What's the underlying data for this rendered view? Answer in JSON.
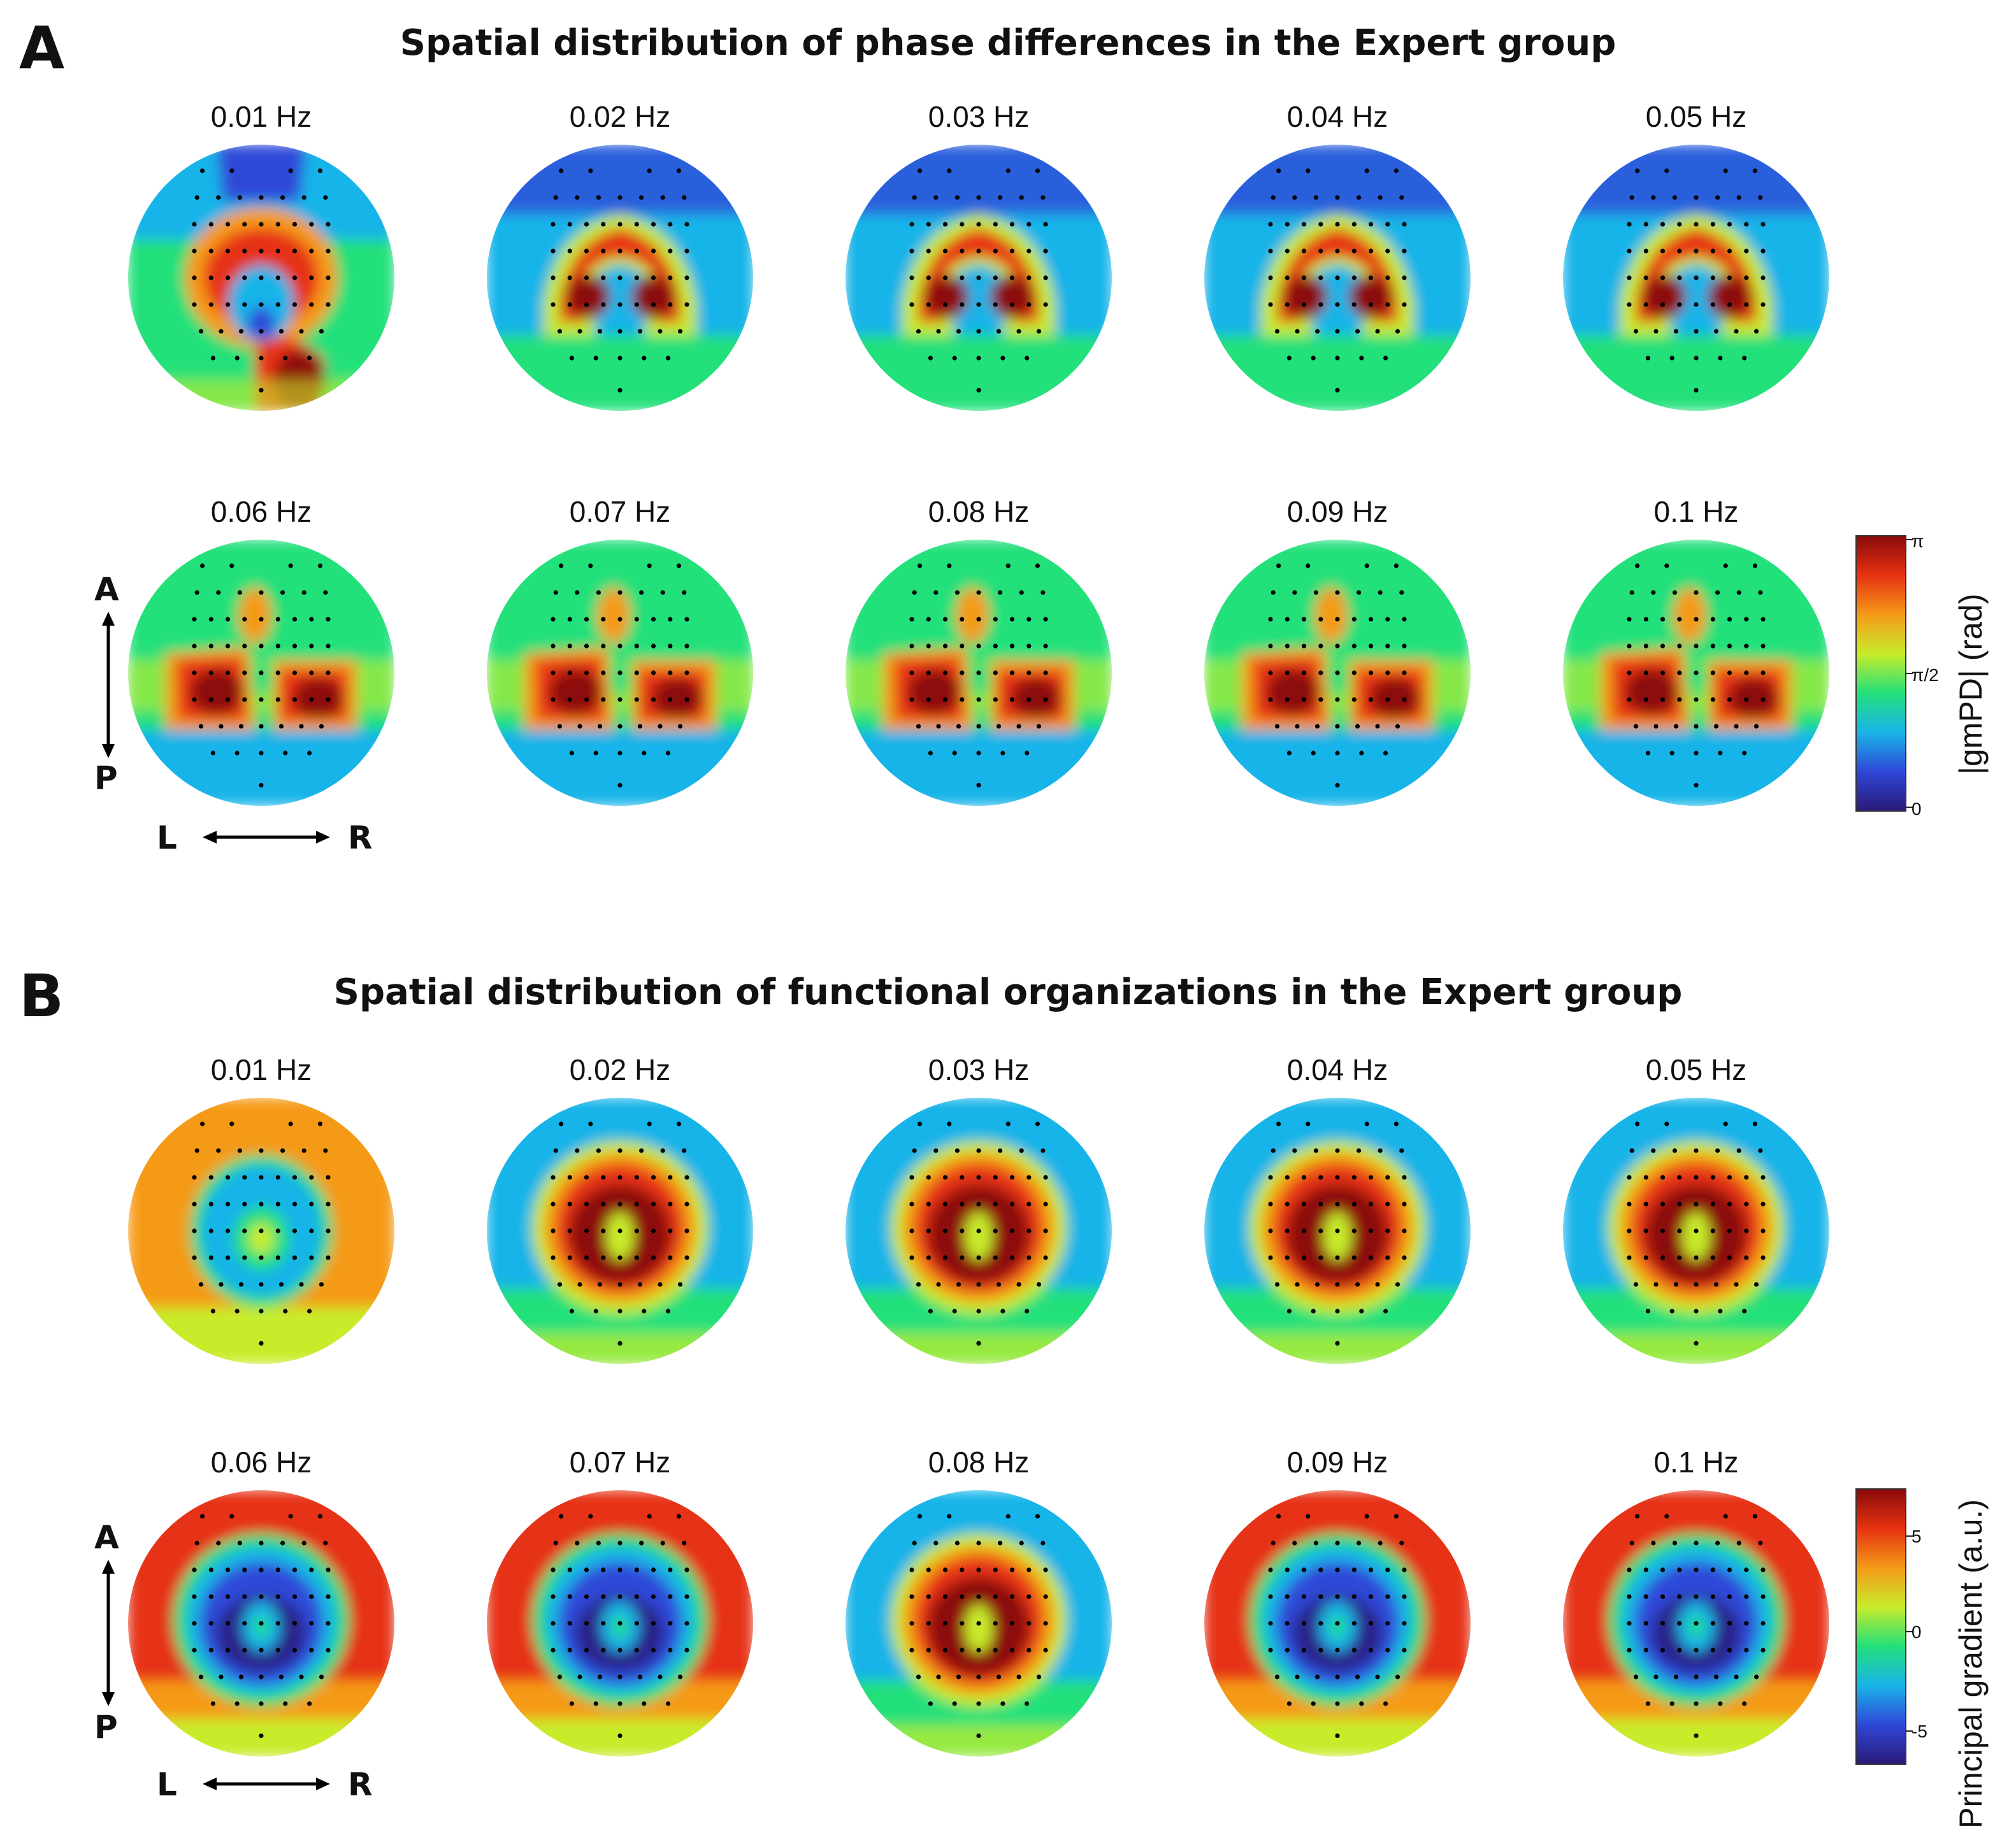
{
  "panel_a": {
    "letter": "A",
    "title": "Spatial distribution of phase differences in the Expert group",
    "frequencies": [
      "0.01 Hz",
      "0.02 Hz",
      "0.03 Hz",
      "0.04 Hz",
      "0.05 Hz",
      "0.06 Hz",
      "0.07 Hz",
      "0.08 Hz",
      "0.09 Hz",
      "0.1 Hz"
    ],
    "colorbar": {
      "label": "|gmPD| (rad)",
      "tick_top": "π",
      "tick_mid": "π/2",
      "tick_bottom": "0"
    }
  },
  "panel_b": {
    "letter": "B",
    "title": "Spatial distribution of functional organizations in the Expert group",
    "frequencies": [
      "0.01 Hz",
      "0.02 Hz",
      "0.03 Hz",
      "0.04 Hz",
      "0.05 Hz",
      "0.06 Hz",
      "0.07 Hz",
      "0.08 Hz",
      "0.09 Hz",
      "0.1 Hz"
    ],
    "colorbar": {
      "label": "Principal gradient (a.u.)",
      "tick_top": "5",
      "tick_mid": "0",
      "tick_bottom": "-5"
    }
  },
  "orientation": {
    "anterior": "A",
    "posterior": "P",
    "left": "L",
    "right": "R"
  },
  "colormap": [
    "#2a1a7a",
    "#2f48d8",
    "#19b4e8",
    "#22e07a",
    "#c8ec2a",
    "#f59a18",
    "#e63312",
    "#8c0a0a"
  ],
  "topography_patterns_a": [
    "ring-a1",
    "arch",
    "arch",
    "arch",
    "arch",
    "bilateral",
    "bilateral",
    "bilateral",
    "bilateral",
    "bilateral"
  ],
  "topography_patterns_b": [
    "inverse-center",
    "center-hot",
    "center-hot",
    "center-hot",
    "center-hot",
    "center-cold",
    "center-cold",
    "center-hot",
    "center-cold",
    "center-cold"
  ]
}
